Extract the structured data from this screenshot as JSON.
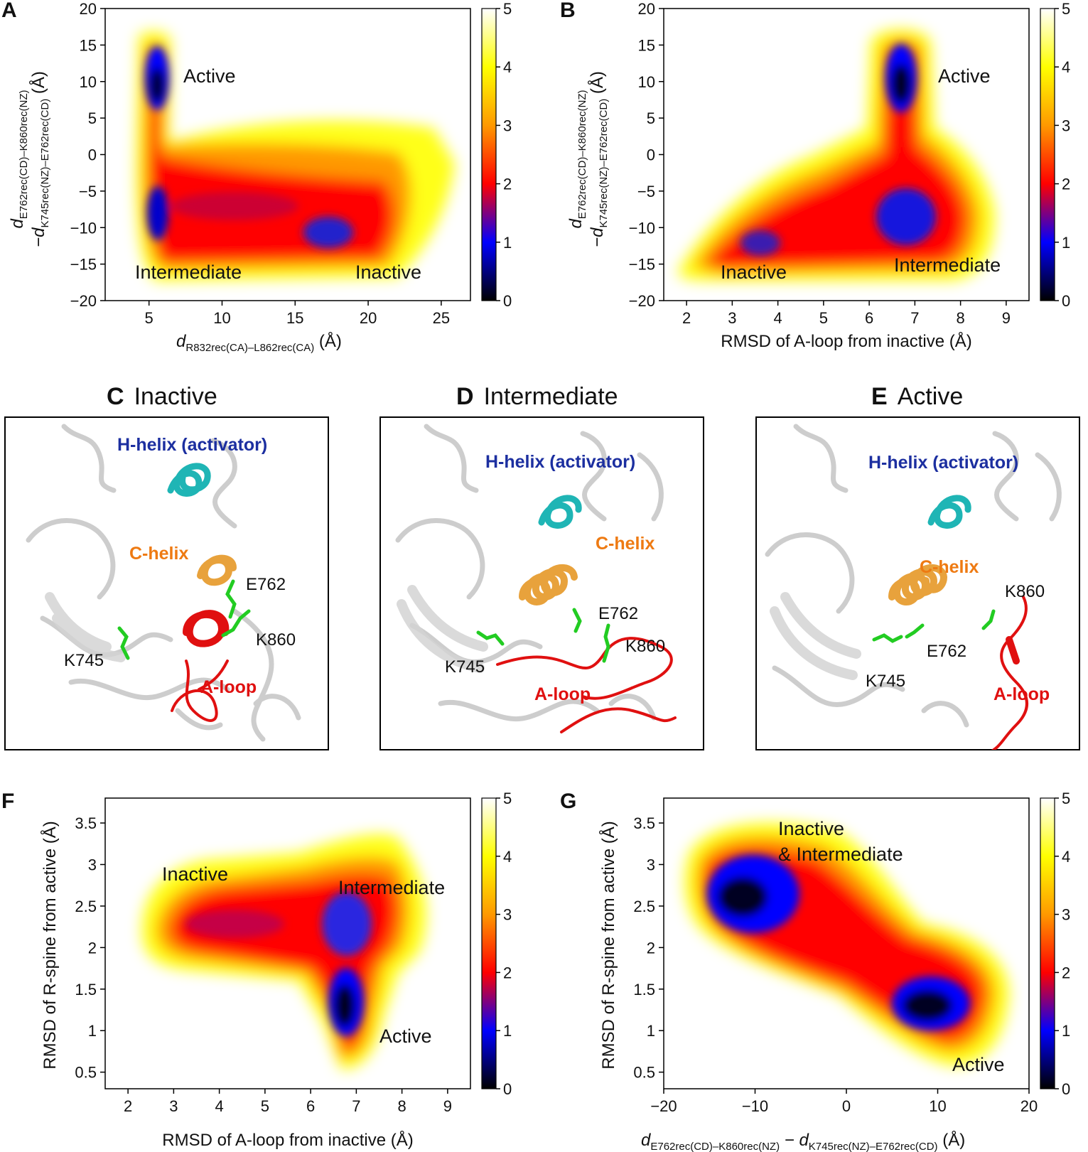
{
  "colorbar": {
    "ticks": [
      "0",
      "1",
      "2",
      "3",
      "4",
      "5"
    ],
    "range": [
      0,
      5
    ]
  },
  "panels": {
    "A": {
      "letter": "A",
      "xlabel_main": "d",
      "xlabel_sub": "R832rec(CA)–L862rec(CA)",
      "xlabel_tail": " (Å)",
      "ylabel_l1_main": "d",
      "ylabel_l1_sub": "E762rec(CD)–K860rec(NZ)",
      "ylabel_l2_main": "−d",
      "ylabel_l2_sub": "K745rec(NZ)–E762rec(CD)",
      "ylabel_l2_tail": " (Å)",
      "annotations": [
        "Active",
        "Intermediate",
        "Inactive"
      ]
    },
    "B": {
      "letter": "B",
      "xlabel": "RMSD of A-loop from inactive (Å)",
      "ylabel_l1_main": "d",
      "ylabel_l1_sub": "E762rec(CD)–K860rec(NZ)",
      "ylabel_l2_main": "−d",
      "ylabel_l2_sub": "K745rec(NZ)–E762rec(CD)",
      "ylabel_l2_tail": " (Å)",
      "annotations": [
        "Active",
        "Inactive",
        "Intermediate"
      ]
    },
    "C": {
      "letter": "C",
      "title": "Inactive",
      "labels": {
        "hhelix": "H-helix (activator)",
        "chelix": "C-helix",
        "e762": "E762",
        "k860": "K860",
        "k745": "K745",
        "aloop": "A-loop"
      }
    },
    "D": {
      "letter": "D",
      "title": "Intermediate",
      "labels": {
        "hhelix": "H-helix (activator)",
        "chelix": "C-helix",
        "e762": "E762",
        "k860": "K860",
        "k745": "K745",
        "aloop": "A-loop"
      }
    },
    "E": {
      "letter": "E",
      "title": "Active",
      "labels": {
        "hhelix": "H-helix (activator)",
        "chelix": "C-helix",
        "e762": "E762",
        "k860": "K860",
        "k745": "K745",
        "aloop": "A-loop"
      }
    },
    "F": {
      "letter": "F",
      "xlabel": "RMSD of A-loop from inactive (Å)",
      "ylabel": "RMSD of R-spine from active (Å)",
      "annotations": [
        "Inactive",
        "Intermediate",
        "Active"
      ]
    },
    "G": {
      "letter": "G",
      "xlabel_a_main": "d",
      "xlabel_a_sub": "E762rec(CD)–K860rec(NZ)",
      "xlabel_b_main": " − d",
      "xlabel_b_sub": "K745rec(NZ)–E762rec(CD)",
      "xlabel_tail": " (Å)",
      "ylabel": "RMSD of R-spine from active (Å)",
      "annotations": [
        "Inactive",
        "& Intermediate",
        "Active"
      ]
    }
  },
  "chart_data": [
    {
      "id": "A",
      "type": "heatmap",
      "xlabel": "dR832rec(CA)–L862rec(CA) (Å)",
      "ylabel": "dE762rec(CD)–K860rec(NZ) − dK745rec(NZ)–E762rec(CD) (Å)",
      "xlim": [
        2.0,
        27.0
      ],
      "ylim": [
        -20,
        20
      ],
      "xticks": [
        5,
        10,
        15,
        20,
        25
      ],
      "yticks": [
        -20,
        -15,
        -10,
        -5,
        0,
        5,
        10,
        15,
        20
      ],
      "colorbar_range": [
        0,
        5
      ],
      "minima": [
        {
          "x": 5.6,
          "y": 9.5,
          "value": 0.0,
          "label": "Active"
        },
        {
          "x": 5.6,
          "y": -9.5,
          "value": 1.2,
          "label": "Intermediate"
        },
        {
          "x": 18.0,
          "y": -12.5,
          "value": 1.2,
          "label": "Inactive"
        }
      ]
    },
    {
      "id": "B",
      "type": "heatmap",
      "xlabel": "RMSD of A-loop from inactive (Å)",
      "ylabel": "dE762rec(CD)–K860rec(NZ) − dK745rec(NZ)–E762rec(CD) (Å)",
      "xlim": [
        1.5,
        9.5
      ],
      "ylim": [
        -20,
        20
      ],
      "xticks": [
        2,
        3,
        4,
        5,
        6,
        7,
        8,
        9
      ],
      "yticks": [
        -20,
        -15,
        -10,
        -5,
        0,
        5,
        10,
        15,
        20
      ],
      "colorbar_range": [
        0,
        5
      ],
      "minima": [
        {
          "x": 6.8,
          "y": 9.5,
          "value": 0.0,
          "label": "Active"
        },
        {
          "x": 6.8,
          "y": -8.5,
          "value": 1.0,
          "label": "Intermediate"
        },
        {
          "x": 3.6,
          "y": -13.0,
          "value": 1.8,
          "label": "Inactive"
        }
      ]
    },
    {
      "id": "F",
      "type": "heatmap",
      "xlabel": "RMSD of A-loop from inactive (Å)",
      "ylabel": "RMSD of R-spine from active (Å)",
      "xlim": [
        1.5,
        9.5
      ],
      "ylim": [
        0.3,
        3.8
      ],
      "xticks": [
        2,
        3,
        4,
        5,
        6,
        7,
        8,
        9
      ],
      "yticks": [
        0.5,
        1.0,
        1.5,
        2.0,
        2.5,
        3.0,
        3.5
      ],
      "colorbar_range": [
        0,
        5
      ],
      "minima": [
        {
          "x": 6.8,
          "y": 1.3,
          "value": 0.0,
          "label": "Active"
        },
        {
          "x": 6.8,
          "y": 2.1,
          "value": 1.0,
          "label": "Intermediate"
        },
        {
          "x": 3.7,
          "y": 2.3,
          "value": 1.8,
          "label": "Inactive"
        }
      ]
    },
    {
      "id": "G",
      "type": "heatmap",
      "xlabel": "dE762rec(CD)–K860rec(NZ) − dK745rec(NZ)–E762rec(CD) (Å)",
      "ylabel": "RMSD of R-spine from active (Å)",
      "xlim": [
        -20,
        20
      ],
      "ylim": [
        0.3,
        3.8
      ],
      "xticks": [
        -20,
        -10,
        0,
        10,
        20
      ],
      "yticks": [
        0.5,
        1.0,
        1.5,
        2.0,
        2.5,
        3.0,
        3.5
      ],
      "colorbar_range": [
        0,
        5
      ],
      "minima": [
        {
          "x": -9.5,
          "y": 2.15,
          "value": 0.0,
          "label": "Inactive & Intermediate"
        },
        {
          "x": 9.0,
          "y": 1.3,
          "value": 0.0,
          "label": "Active"
        }
      ]
    }
  ]
}
